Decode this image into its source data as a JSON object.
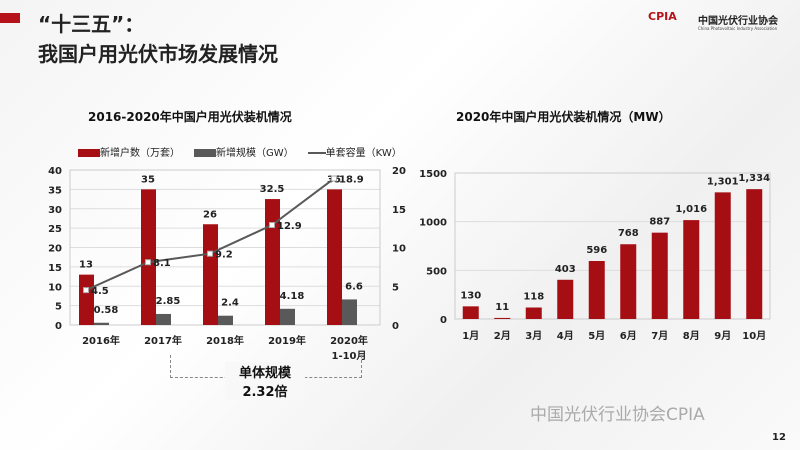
{
  "header": {
    "title_line1": "“十三五”：",
    "title_line2": "我国户用光伏市场发展情况",
    "logo_mark": "CPIA",
    "logo_cn": "中国光伏行业协会",
    "logo_en": "China Photovoltaic Industry Association"
  },
  "footer": {
    "watermark": "中国光伏行业协会CPIA",
    "page_number": "12"
  },
  "colors": {
    "red": "#a50e12",
    "gray": "#595959",
    "line": "#595959"
  },
  "annotation": {
    "label1": "单体规模",
    "label2": "2.32倍"
  },
  "chart_data": [
    {
      "type": "bar",
      "title": "2016-2020年中国户用光伏装机情况",
      "categories": [
        "2016年",
        "2017年",
        "2018年",
        "2019年",
        "2020年\n1-10月"
      ],
      "category_lines": [
        [
          "2016年"
        ],
        [
          "2017年"
        ],
        [
          "2018年"
        ],
        [
          "2019年"
        ],
        [
          "2020年",
          "1-10月"
        ]
      ],
      "series": [
        {
          "name": "新增户数（万套）",
          "kind": "bar",
          "axis": "left",
          "values": [
            13,
            35,
            26,
            32.5,
            35
          ],
          "labels": [
            "13",
            "35",
            "26",
            "32.5",
            "35"
          ]
        },
        {
          "name": "新增规模（GW）",
          "kind": "bar",
          "axis": "left",
          "values": [
            0.58,
            2.85,
            2.4,
            4.18,
            6.6
          ],
          "labels": [
            "0.58",
            "2.85",
            "2.4",
            "4.18",
            "6.6"
          ]
        },
        {
          "name": "单套容量（KW）",
          "kind": "line",
          "axis": "right",
          "values": [
            4.5,
            8.1,
            9.2,
            12.9,
            18.9
          ],
          "labels": [
            "4.5",
            "8.1",
            "9.2",
            "12.9",
            "18.9"
          ]
        }
      ],
      "ylim_left": [
        0,
        40
      ],
      "yticks_left": [
        "0",
        "5",
        "10",
        "15",
        "20",
        "25",
        "30",
        "35",
        "40"
      ],
      "ylim_right": [
        0,
        20
      ],
      "yticks_right": [
        "0",
        "5",
        "10",
        "15",
        "20"
      ],
      "legend": "top",
      "grid": true
    },
    {
      "type": "bar",
      "title": "2020年中国户用光伏装机情况（MW）",
      "categories": [
        "1月",
        "2月",
        "3月",
        "4月",
        "5月",
        "6月",
        "7月",
        "8月",
        "9月",
        "10月"
      ],
      "values": [
        130,
        11,
        118,
        403,
        596,
        768,
        887,
        1016,
        1301,
        1334
      ],
      "labels": [
        "130",
        "11",
        "118",
        "403",
        "596",
        "768",
        "887",
        "1,016",
        "1,301",
        "1,334"
      ],
      "ylim": [
        0,
        1500
      ],
      "yticks": [
        "0",
        "500",
        "1000",
        "1500"
      ],
      "grid": true
    }
  ]
}
